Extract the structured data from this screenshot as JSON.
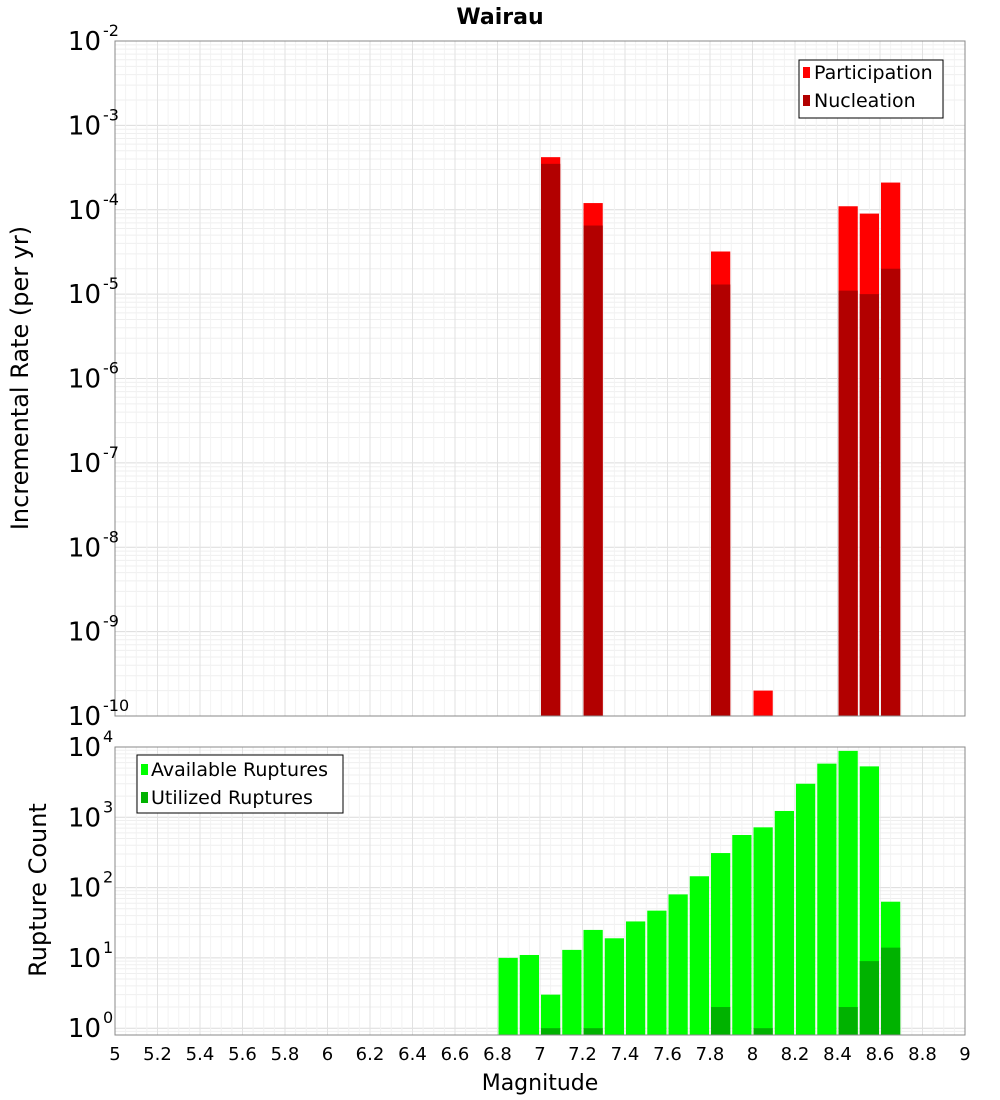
{
  "title": "Wairau",
  "chart_data": [
    {
      "type": "bar",
      "title": "Wairau",
      "ylabel": "Incremental Rate (per yr)",
      "xlabel": "",
      "yscale": "log",
      "ylim": [
        1e-10,
        0.01
      ],
      "xlim": [
        5,
        9
      ],
      "bar_width": 0.1,
      "grid": true,
      "legend_position": "top-right",
      "y_ticks": [
        {
          "base": "10",
          "exp": "-10",
          "value": 1e-10
        },
        {
          "base": "10",
          "exp": "-9",
          "value": 1e-09
        },
        {
          "base": "10",
          "exp": "-8",
          "value": 1e-08
        },
        {
          "base": "10",
          "exp": "-7",
          "value": 1e-07
        },
        {
          "base": "10",
          "exp": "-6",
          "value": 1e-06
        },
        {
          "base": "10",
          "exp": "-5",
          "value": 1e-05
        },
        {
          "base": "10",
          "exp": "-4",
          "value": 0.0001
        },
        {
          "base": "10",
          "exp": "-3",
          "value": 0.001
        },
        {
          "base": "10",
          "exp": "-2",
          "value": 0.01
        }
      ],
      "series": [
        {
          "name": "Participation",
          "color": "#ff0000",
          "x": [
            7.05,
            7.25,
            7.85,
            8.05,
            8.45,
            8.55,
            8.65
          ],
          "values": [
            0.00042,
            0.00012,
            3.2e-05,
            2e-10,
            0.00011,
            9e-05,
            0.00021
          ]
        },
        {
          "name": "Nucleation",
          "color": "#b20000",
          "x": [
            7.05,
            7.25,
            7.85,
            8.45,
            8.55,
            8.65
          ],
          "values": [
            0.00035,
            6.5e-05,
            1.3e-05,
            1.1e-05,
            1e-05,
            2e-05
          ]
        }
      ]
    },
    {
      "type": "bar",
      "title": "",
      "ylabel": "Rupture Count",
      "xlabel": "Magnitude",
      "yscale": "log",
      "ylim": [
        0.8,
        10000
      ],
      "xlim": [
        5,
        9
      ],
      "bar_width": 0.1,
      "grid": true,
      "legend_position": "top-left",
      "x_ticks": [
        "5",
        "5.2",
        "5.4",
        "5.6",
        "5.8",
        "6",
        "6.2",
        "6.4",
        "6.6",
        "6.8",
        "7",
        "7.2",
        "7.4",
        "7.6",
        "7.8",
        "8",
        "8.2",
        "8.4",
        "8.6",
        "8.8",
        "9"
      ],
      "y_ticks": [
        {
          "base": "10",
          "exp": "0",
          "value": 1
        },
        {
          "base": "10",
          "exp": "1",
          "value": 10
        },
        {
          "base": "10",
          "exp": "2",
          "value": 100
        },
        {
          "base": "10",
          "exp": "3",
          "value": 1000
        },
        {
          "base": "10",
          "exp": "4",
          "value": 10000
        }
      ],
      "series": [
        {
          "name": "Available Ruptures",
          "color": "#00ff00",
          "x": [
            6.85,
            6.95,
            7.05,
            7.15,
            7.25,
            7.35,
            7.45,
            7.55,
            7.65,
            7.75,
            7.85,
            7.95,
            8.05,
            8.15,
            8.25,
            8.35,
            8.45,
            8.55,
            8.65
          ],
          "values": [
            10,
            11,
            3,
            13,
            25,
            19,
            33,
            47,
            80,
            145,
            310,
            560,
            720,
            1230,
            3000,
            5800,
            8800,
            5300,
            63
          ]
        },
        {
          "name": "Utilized Ruptures",
          "color": "#00b200",
          "x": [
            7.05,
            7.25,
            7.85,
            8.05,
            8.45,
            8.55,
            8.65
          ],
          "values": [
            1,
            1,
            2,
            1,
            2,
            9,
            14
          ]
        }
      ]
    }
  ]
}
